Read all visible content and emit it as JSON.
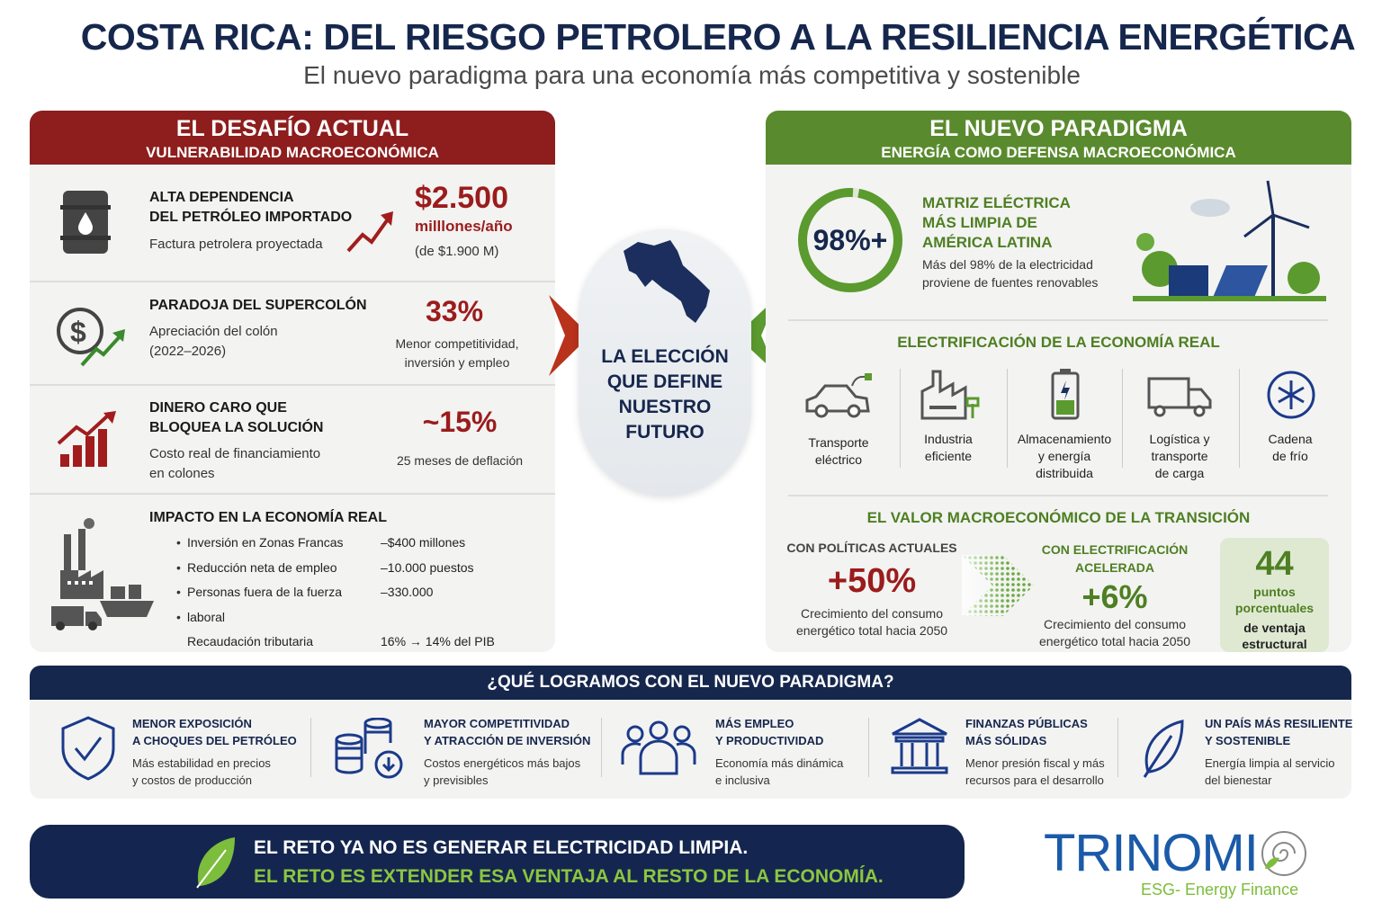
{
  "title": "COSTA RICA: DEL RIESGO PETROLERO A LA RESILIENCIA ENERGÉTICA",
  "subtitle": "El nuevo paradigma para una economía más competitiva y sostenible",
  "left": {
    "title": "EL DESAFÍO ACTUAL",
    "subtitle": "VULNERABILIDAD MACROECONÓMICA",
    "rows": [
      {
        "heading1": "ALTA DEPENDENCIA",
        "heading2": "DEL PETRÓLEO IMPORTADO",
        "text": "Factura petrolera proyectada",
        "value": "$2.500",
        "unit": "milllones/año",
        "note": "(de $1.900 M)"
      },
      {
        "heading": "PARADOJA DEL SUPERCOLÓN",
        "text1": "Apreciación del colón",
        "text2": "(2022–2026)",
        "value": "33%",
        "note1": "Menor competitividad,",
        "note2": "inversión y empleo"
      },
      {
        "heading1": "DINERO CARO QUE",
        "heading2": "BLOQUEA LA SOLUCIÓN",
        "text1": "Costo real de financiamiento",
        "text2": "en colones",
        "value": "~15%",
        "note": "25 meses de deflación"
      }
    ],
    "impact": {
      "heading": "IMPACTO EN LA ECONOMÍA REAL",
      "items": [
        {
          "label": "Inversión en Zonas Francas",
          "value": "–$400 millones"
        },
        {
          "label": "Reducción neta de empleo",
          "value": "–10.000 puestos"
        },
        {
          "label": "Personas fuera de la fuerza laboral",
          "value": "–330.000"
        },
        {
          "label": "Recaudación tributaria",
          "value": "16% → 14% del PIB"
        }
      ]
    }
  },
  "center": {
    "l1": "LA ELECCIÓN",
    "l2": "QUE DEFINE",
    "l3": "NUESTRO",
    "l4": "FUTURO"
  },
  "right": {
    "title": "EL NUEVO PARADIGMA",
    "subtitle": "ENERGÍA COMO DEFENSA MACROECONÓMICA",
    "matrix": {
      "value": "98%+",
      "progress": 0.98,
      "h1": "MATRIZ ELÉCTRICA",
      "h2": "MÁS LIMPIA DE",
      "h3": "AMÉRICA LATINA",
      "t1": "Más del 98% de la electricidad",
      "t2": "proviene de fuentes renovables"
    },
    "electrification": {
      "heading": "ELECTRIFICACIÓN DE LA ECONOMÍA REAL",
      "items": [
        {
          "l1": "Transporte",
          "l2": "eléctrico",
          "l3": ""
        },
        {
          "l1": "Industria",
          "l2": "eficiente",
          "l3": ""
        },
        {
          "l1": "Almacenamiento",
          "l2": "y energía",
          "l3": "distribuida"
        },
        {
          "l1": "Logística y",
          "l2": "transporte",
          "l3": "de carga"
        },
        {
          "l1": "Cadena",
          "l2": "de frío",
          "l3": ""
        }
      ]
    },
    "value": {
      "heading": "EL VALOR MACROECONÓMICO DE LA TRANSICIÓN",
      "current": {
        "label": "CON POLÍTICAS ACTUALES",
        "value": "+50%",
        "t1": "Crecimiento del consumo",
        "t2": "energético total hacia 2050"
      },
      "accel": {
        "label1": "CON ELECTRIFICACIÓN",
        "label2": "ACELERADA",
        "value": "+6%",
        "t1": "Crecimiento del consumo",
        "t2": "energético total hacia 2050"
      },
      "adv": {
        "value": "44",
        "l1": "puntos",
        "l2": "porcentuales",
        "l3": "de ventaja",
        "l4": "estructural"
      }
    }
  },
  "benefits": {
    "heading": "¿QUÉ LOGRAMOS CON EL NUEVO PARADIGMA?",
    "items": [
      {
        "h1": "MENOR EXPOSICIÓN",
        "h2": "A CHOQUES DEL PETRÓLEO",
        "t1": "Más estabilidad en precios",
        "t2": "y costos de producción"
      },
      {
        "h1": "MAYOR COMPETITIVIDAD",
        "h2": "Y ATRACCIÓN DE INVERSIÓN",
        "t1": "Costos energéticos más bajos",
        "t2": "y previsibles"
      },
      {
        "h1": "MÁS EMPLEO",
        "h2": "Y PRODUCTIVIDAD",
        "t1": "Economía más dinámica",
        "t2": "e inclusiva"
      },
      {
        "h1": "FINANZAS PÚBLICAS",
        "h2": "MÁS SÓLIDAS",
        "t1": "Menor presión fiscal y más",
        "t2": "recursos para el desarrollo"
      },
      {
        "h1": "UN PAÍS MÁS RESILIENTE",
        "h2": "Y SOSTENIBLE",
        "t1": "Energía limpia al servicio",
        "t2": "del bienestar"
      }
    ]
  },
  "footer": {
    "line1": "EL RETO YA NO ES GENERAR ELECTRICIDAD LIMPIA.",
    "line2": "EL RETO ES EXTENDER ESA VENTAJA AL RESTO DE LA ECONOMÍA."
  },
  "logo": {
    "name": "TRINOMI",
    "tagline": "ESG- Energy Finance"
  },
  "colors": {
    "navy": "#16274d",
    "red": "#9b1c1c",
    "green": "#5a8a2e",
    "lime": "#8cc63f"
  }
}
